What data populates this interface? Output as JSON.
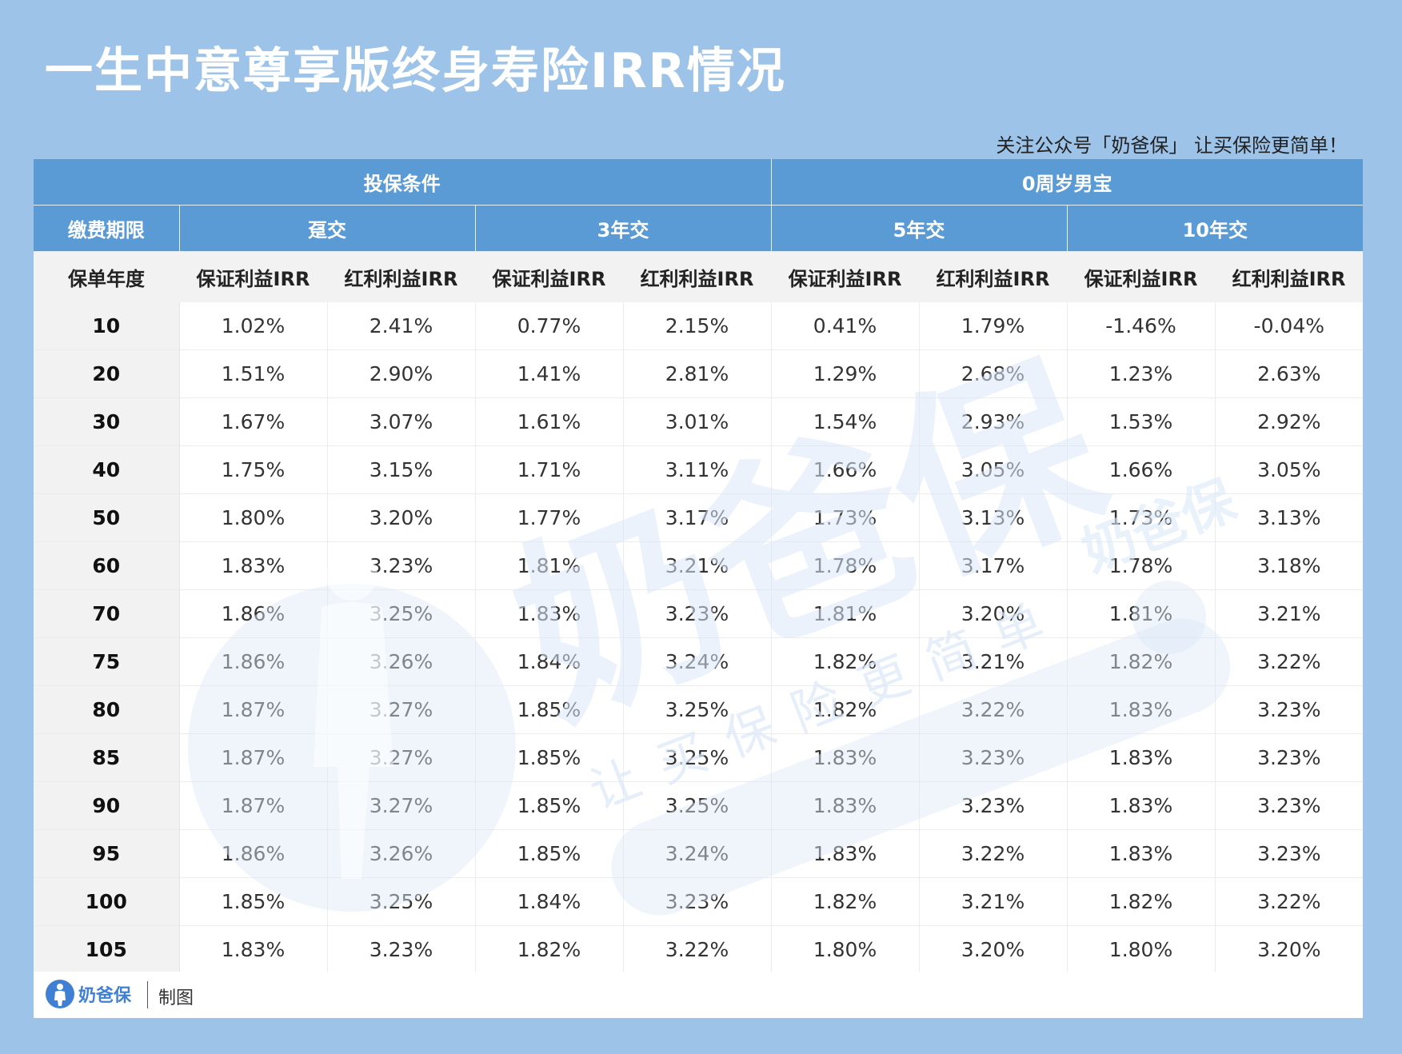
{
  "title": "一生中意尊享版终身寿险IRR情况",
  "slogan": "关注公众号「奶爸保」  让买保险更简单！",
  "header": {
    "conditions": "投保条件",
    "insured": "0周岁男宝",
    "payment_term_label": "缴费期限",
    "terms": [
      "趸交",
      "3年交",
      "5年交",
      "10年交"
    ],
    "year_label": "保单年度",
    "guaranteed_label": "保证利益IRR",
    "dividend_label": "红利利益IRR"
  },
  "rows": [
    {
      "year": "10",
      "values": [
        "1.02%",
        "2.41%",
        "0.77%",
        "2.15%",
        "0.41%",
        "1.79%",
        "-1.46%",
        "-0.04%"
      ]
    },
    {
      "year": "20",
      "values": [
        "1.51%",
        "2.90%",
        "1.41%",
        "2.81%",
        "1.29%",
        "2.68%",
        "1.23%",
        "2.63%"
      ]
    },
    {
      "year": "30",
      "values": [
        "1.67%",
        "3.07%",
        "1.61%",
        "3.01%",
        "1.54%",
        "2.93%",
        "1.53%",
        "2.92%"
      ]
    },
    {
      "year": "40",
      "values": [
        "1.75%",
        "3.15%",
        "1.71%",
        "3.11%",
        "1.66%",
        "3.05%",
        "1.66%",
        "3.05%"
      ]
    },
    {
      "year": "50",
      "values": [
        "1.80%",
        "3.20%",
        "1.77%",
        "3.17%",
        "1.73%",
        "3.13%",
        "1.73%",
        "3.13%"
      ]
    },
    {
      "year": "60",
      "values": [
        "1.83%",
        "3.23%",
        "1.81%",
        "3.21%",
        "1.78%",
        "3.17%",
        "1.78%",
        "3.18%"
      ]
    },
    {
      "year": "70",
      "values": [
        "1.86%",
        "3.25%",
        "1.83%",
        "3.23%",
        "1.81%",
        "3.20%",
        "1.81%",
        "3.21%"
      ]
    },
    {
      "year": "75",
      "values": [
        "1.86%",
        "3.26%",
        "1.84%",
        "3.24%",
        "1.82%",
        "3.21%",
        "1.82%",
        "3.22%"
      ]
    },
    {
      "year": "80",
      "values": [
        "1.87%",
        "3.27%",
        "1.85%",
        "3.25%",
        "1.82%",
        "3.22%",
        "1.83%",
        "3.23%"
      ]
    },
    {
      "year": "85",
      "values": [
        "1.87%",
        "3.27%",
        "1.85%",
        "3.25%",
        "1.83%",
        "3.23%",
        "1.83%",
        "3.23%"
      ]
    },
    {
      "year": "90",
      "values": [
        "1.87%",
        "3.27%",
        "1.85%",
        "3.25%",
        "1.83%",
        "3.23%",
        "1.83%",
        "3.23%"
      ]
    },
    {
      "year": "95",
      "values": [
        "1.86%",
        "3.26%",
        "1.85%",
        "3.24%",
        "1.83%",
        "3.22%",
        "1.83%",
        "3.23%"
      ]
    },
    {
      "year": "100",
      "values": [
        "1.85%",
        "3.25%",
        "1.84%",
        "3.23%",
        "1.82%",
        "3.21%",
        "1.82%",
        "3.22%"
      ]
    },
    {
      "year": "105",
      "values": [
        "1.83%",
        "3.23%",
        "1.82%",
        "3.22%",
        "1.80%",
        "3.20%",
        "1.80%",
        "3.20%"
      ]
    }
  ],
  "watermark": {
    "brand": "奶爸保",
    "tagline": "让买保险更简单"
  },
  "footer": {
    "brand": "奶爸保",
    "label": "制图"
  },
  "colors": {
    "background": "#9ec3e8",
    "header_blue": "#5b9bd5",
    "subheader_gray": "#f2f2f2",
    "brand_blue": "#3f7fd4"
  }
}
